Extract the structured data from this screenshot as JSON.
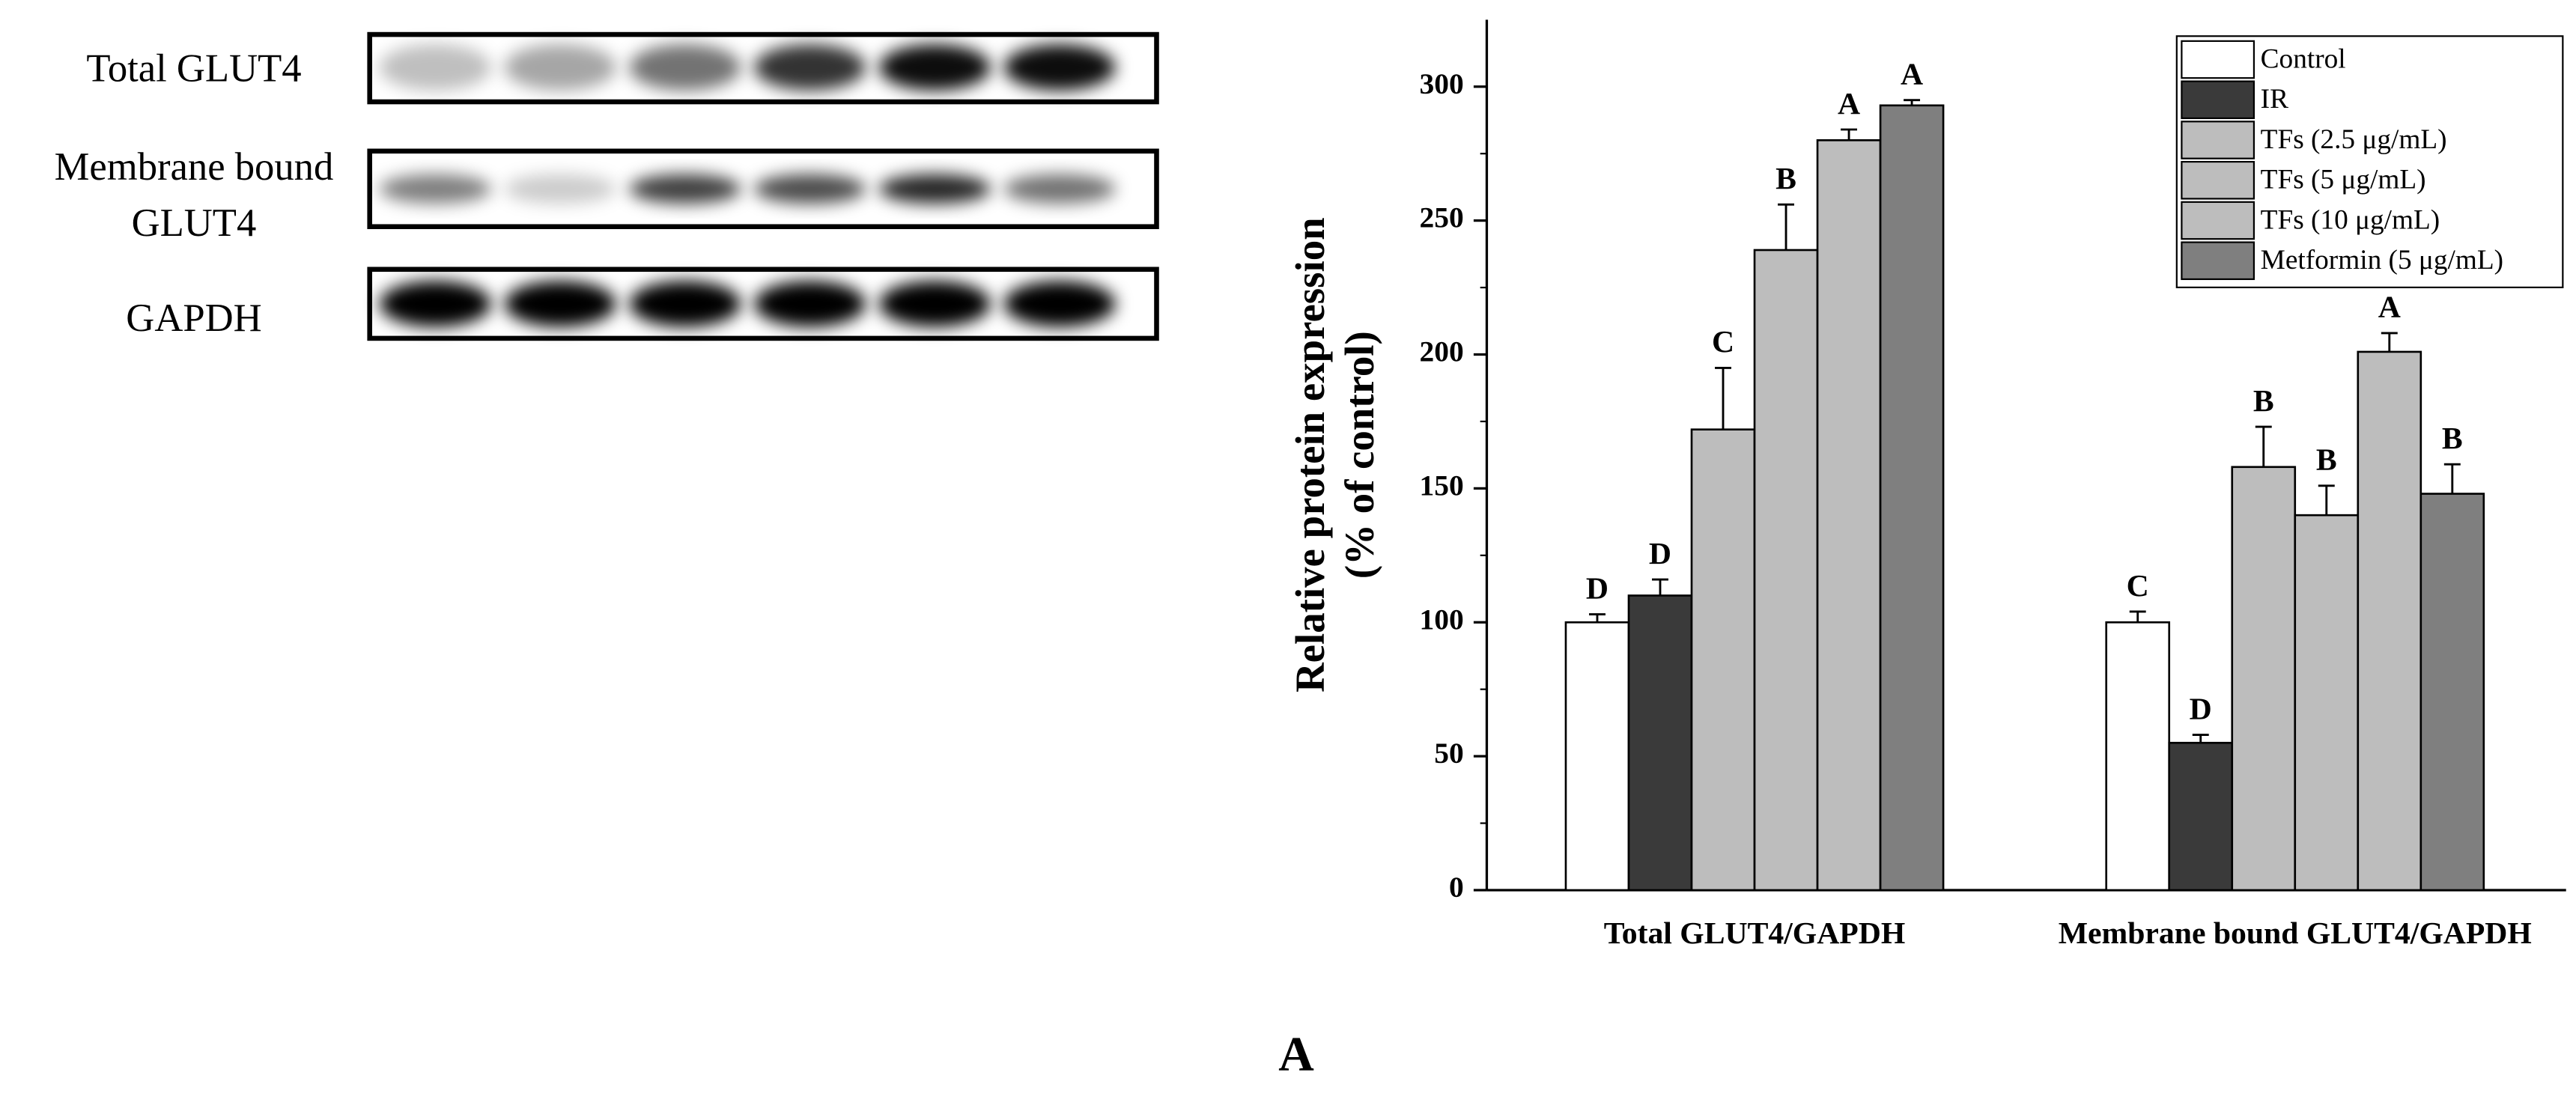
{
  "blot": {
    "rows": [
      {
        "lines": [
          "Total GLUT4"
        ]
      },
      {
        "lines": [
          "Membrane bound",
          "GLUT4"
        ]
      },
      {
        "lines": [
          "GAPDH"
        ]
      }
    ]
  },
  "panel_label": "A",
  "chart_data": {
    "type": "bar",
    "ylabel": [
      "Relative protein  expression",
      "(% of control)"
    ],
    "categories": [
      "Total GLUT4/GAPDH",
      "Membrane bound GLUT4/GAPDH"
    ],
    "ylim": [
      0,
      325
    ],
    "yticks": [
      0,
      50,
      100,
      150,
      200,
      250,
      300
    ],
    "legend": "upper right",
    "series": [
      {
        "name": "Control",
        "color": "#ffffff",
        "values": [
          100,
          100
        ],
        "errors": [
          3,
          4
        ],
        "letters": [
          "D",
          "C"
        ]
      },
      {
        "name": "IR",
        "color": "#3a3a3a",
        "values": [
          110,
          55
        ],
        "errors": [
          6,
          3
        ],
        "letters": [
          "D",
          "D"
        ]
      },
      {
        "name": "TFs (2.5 μg/mL)",
        "color": "#bdbdbd",
        "values": [
          172,
          158
        ],
        "errors": [
          23,
          15
        ],
        "letters": [
          "C",
          "B"
        ]
      },
      {
        "name": "TFs (5 μg/mL)",
        "color": "#bdbdbd",
        "values": [
          239,
          140
        ],
        "errors": [
          17,
          11
        ],
        "letters": [
          "B",
          "B"
        ]
      },
      {
        "name": "TFs (10 μg/mL)",
        "color": "#bdbdbd",
        "values": [
          280,
          201
        ],
        "errors": [
          4,
          7
        ],
        "letters": [
          "A",
          "A"
        ]
      },
      {
        "name": "Metformin (5 μg/mL)",
        "color": "#7f7f7f",
        "values": [
          293,
          148
        ],
        "errors": [
          2,
          11
        ],
        "letters": [
          "A",
          "B"
        ]
      }
    ]
  }
}
